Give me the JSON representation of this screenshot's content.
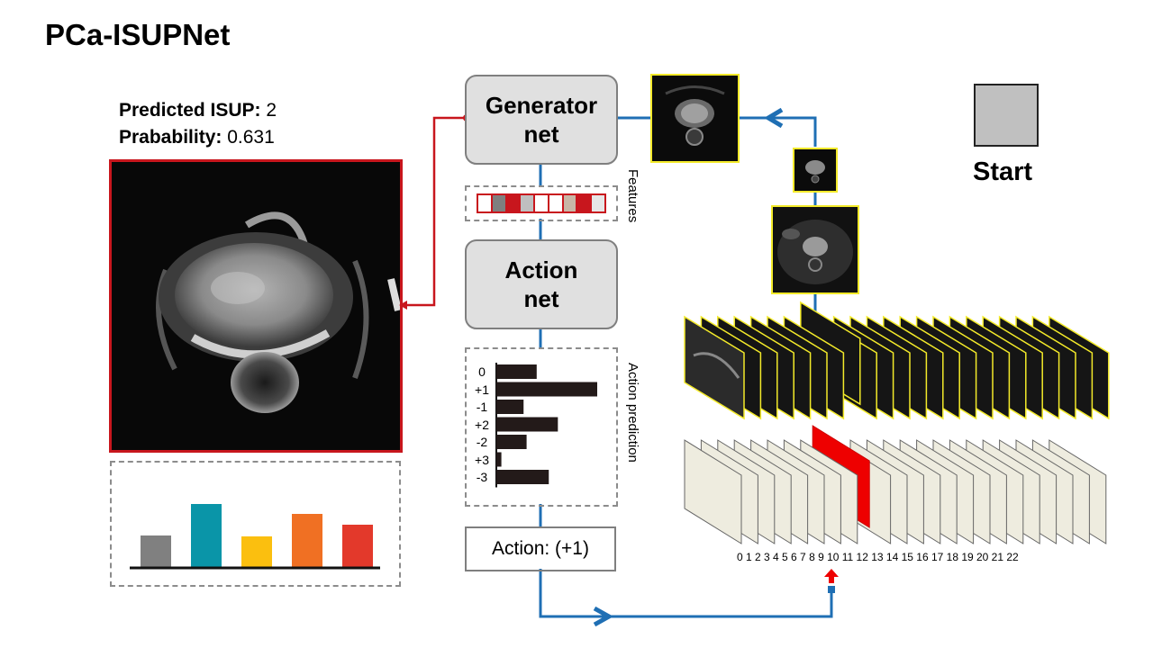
{
  "title": "PCa-ISUPNet",
  "prediction": {
    "isup_label": "Predicted ISUP:",
    "isup_value": "2",
    "prob_label": "Prabability:",
    "prob_value": "0.631"
  },
  "generator_net": {
    "line1": "Generator",
    "line2": "net"
  },
  "action_net": {
    "line1": "Action",
    "line2": "net"
  },
  "features_label": "Features",
  "features_colors": [
    "#ffffff",
    "#7f7f7f",
    "#c8161d",
    "#bfbfbf",
    "#ffffff",
    "#ffffff",
    "#c8b6a6",
    "#c8161d",
    "#e6e6e6"
  ],
  "action_prediction": {
    "label": "Action prediction",
    "categories": [
      "0",
      "+1",
      "-1",
      "+2",
      "-2",
      "+3",
      "-3"
    ],
    "values": [
      0.4,
      1.0,
      0.27,
      0.61,
      0.3,
      0.05,
      0.52
    ]
  },
  "action_result": "Action: (+1)",
  "start_label": "Start",
  "slice_indices": "0 1 2 3 4 5 6 7 8 9 10 11 12 13 14 15 16 17 18 19 20 21 22",
  "chart_data": {
    "type": "bar",
    "categories": [
      "",
      "",
      "",
      "",
      ""
    ],
    "values": [
      0.35,
      0.7,
      0.34,
      0.59,
      0.47
    ],
    "colors": [
      "#808080",
      "#0a95a8",
      "#fbbf0f",
      "#f07023",
      "#e3392b"
    ]
  },
  "colors": {
    "accent_red": "#c8161d",
    "flow_blue": "#1f6fb4",
    "image_border": "#f3ea2a",
    "selected_slice": "#ee0000"
  }
}
